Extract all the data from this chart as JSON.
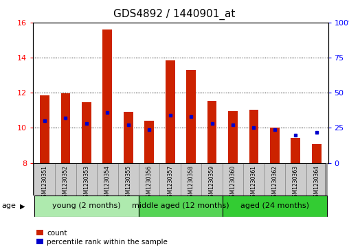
{
  "title": "GDS4892 / 1440901_at",
  "samples": [
    "GSM1230351",
    "GSM1230352",
    "GSM1230353",
    "GSM1230354",
    "GSM1230355",
    "GSM1230356",
    "GSM1230357",
    "GSM1230358",
    "GSM1230359",
    "GSM1230360",
    "GSM1230361",
    "GSM1230362",
    "GSM1230363",
    "GSM1230364"
  ],
  "count_values": [
    11.85,
    11.95,
    11.45,
    15.6,
    10.9,
    10.4,
    13.85,
    13.3,
    11.55,
    10.95,
    11.05,
    10.0,
    9.45,
    9.1
  ],
  "percentile_values": [
    30,
    32,
    28,
    36,
    27,
    24,
    34,
    33,
    28,
    27,
    25,
    24,
    20,
    22
  ],
  "ymin": 8,
  "ymax": 16,
  "yticks_left": [
    8,
    10,
    12,
    14,
    16
  ],
  "yticks_right": [
    0,
    25,
    50,
    75,
    100
  ],
  "groups": [
    {
      "label": "young (2 months)",
      "start": 0,
      "end": 5
    },
    {
      "label": "middle aged (12 months)",
      "start": 5,
      "end": 9
    },
    {
      "label": "aged (24 months)",
      "start": 9,
      "end": 14
    }
  ],
  "group_colors": [
    "#aeeaae",
    "#55d455",
    "#33cc33"
  ],
  "bar_color": "#cc2200",
  "dot_color": "#0000cc",
  "bar_width": 0.45,
  "tick_label_area_bg": "#cccccc",
  "age_label": "age",
  "legend_count": "count",
  "legend_percentile": "percentile rank within the sample",
  "title_fontsize": 11,
  "axis_tick_fontsize": 8,
  "sample_fontsize": 5.5,
  "group_fontsize": 8,
  "legend_fontsize": 7.5
}
